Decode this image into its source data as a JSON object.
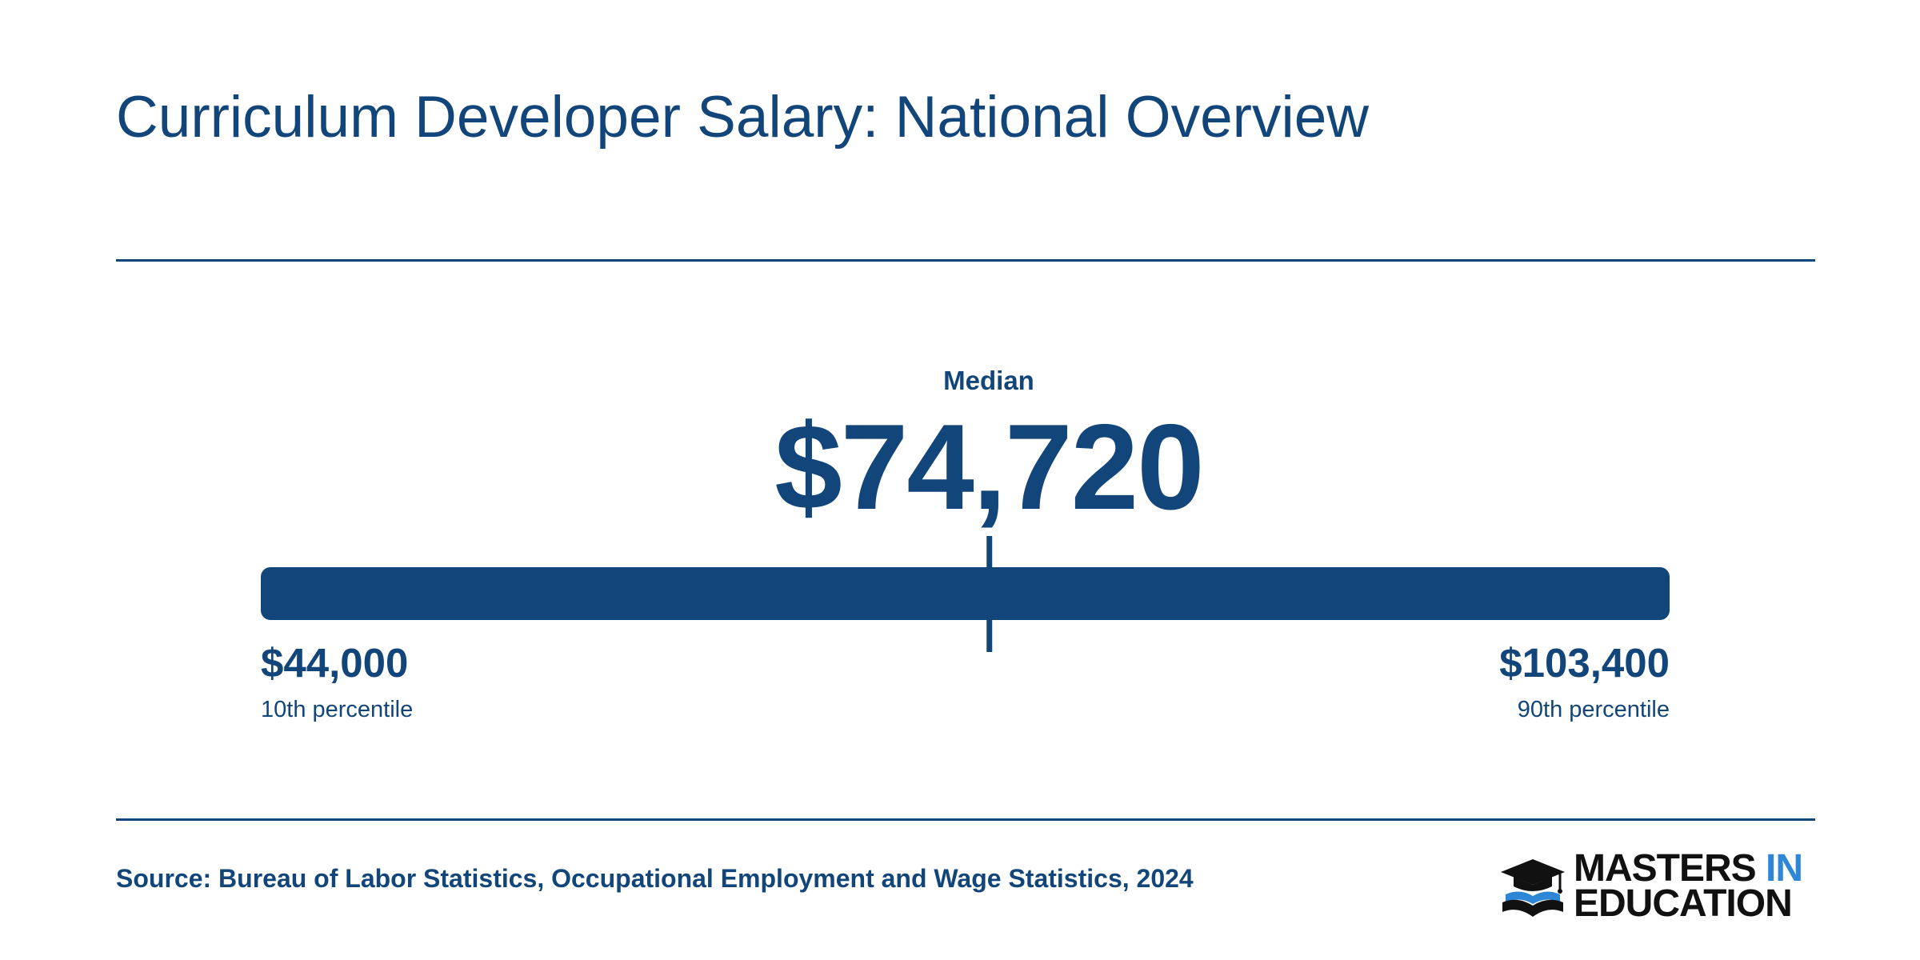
{
  "title": "Curriculum Developer Salary: National Overview",
  "chart_data": {
    "type": "range",
    "median": {
      "label": "Median",
      "value": 74720,
      "display": "$74,720"
    },
    "low": {
      "label": "10th percentile",
      "value": 44000,
      "display": "$44,000"
    },
    "high": {
      "label": "90th percentile",
      "value": 103400,
      "display": "$103,400"
    }
  },
  "source": "Source: Bureau of Labor Statistics, Occupational Employment and Wage Statistics, 2024",
  "logo": {
    "line1": "MASTERS",
    "line1_accent": "IN",
    "line2": "EDUCATION"
  },
  "colors": {
    "primary": "#12457a",
    "accent": "#2d86d6",
    "background": "#ffffff"
  }
}
